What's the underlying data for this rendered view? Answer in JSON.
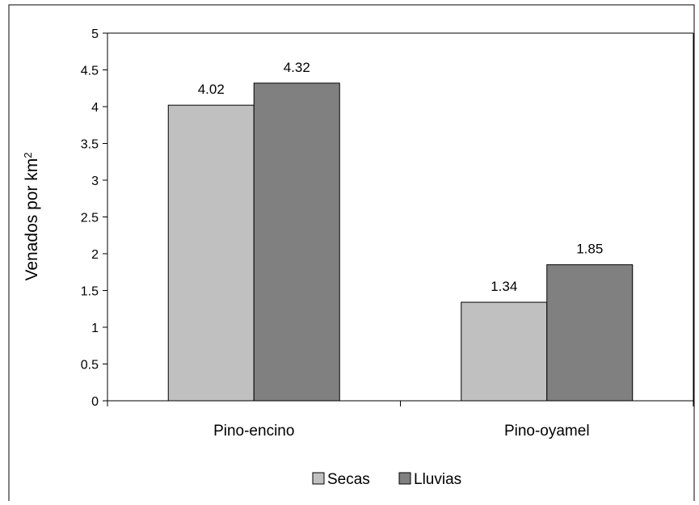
{
  "chart_data": {
    "type": "bar",
    "categories": [
      "Pino-encino",
      "Pino-oyamel"
    ],
    "series": [
      {
        "name": "Secas",
        "values": [
          4.02,
          1.34
        ],
        "color": "#c0c0c0"
      },
      {
        "name": "Lluvias",
        "values": [
          4.32,
          1.85
        ],
        "color": "#808080"
      }
    ],
    "data_labels": [
      [
        "4.02",
        "1.34"
      ],
      [
        "4.32",
        "1.85"
      ]
    ],
    "ylabel": {
      "text": "Venados por km",
      "superscript": "2"
    },
    "ylim": [
      0,
      5
    ],
    "yticks": [
      "0",
      "0.5",
      "1",
      "1.5",
      "2",
      "2.5",
      "3",
      "3.5",
      "4",
      "4.5",
      "5"
    ],
    "grid": false,
    "legend_position": "bottom"
  }
}
